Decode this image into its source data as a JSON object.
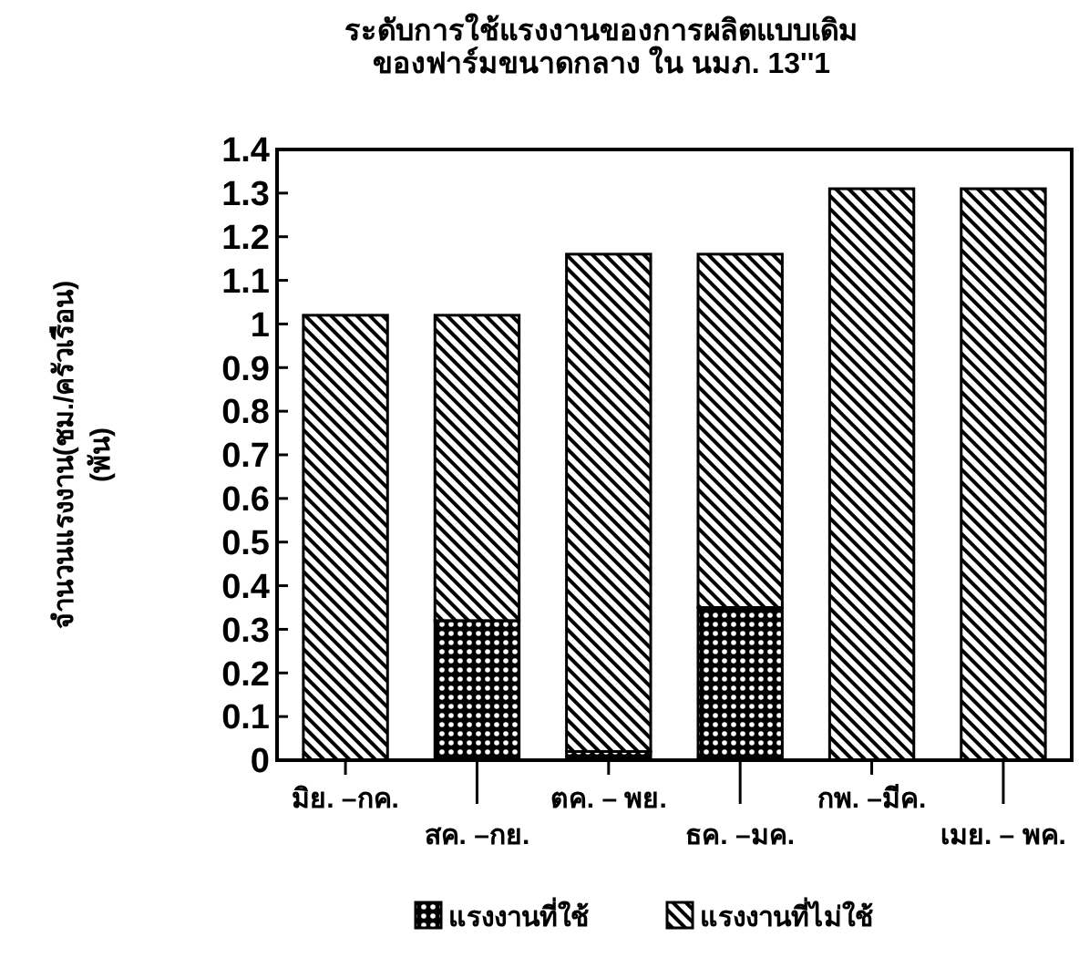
{
  "chart_data": {
    "type": "bar",
    "title": "ระดับการใช้แรงงานของการผลิตแบบเดิม\nของฟาร์มขนาดกลาง ใน นมภ. 13''1",
    "ylabel": "จำนวนแรงงาน(ชม./ครัวเรือน)\n(พัน)",
    "categories": [
      "มิย. –กค.",
      "สค. –กย.",
      "ตค. – พย.",
      "ธค. –มค.",
      "กพ. –มีค.",
      "เมย. – พค."
    ],
    "stacked": true,
    "series": [
      {
        "name": "แรงงานที่ใช้",
        "color": "#000000",
        "values": [
          0,
          0.32,
          0.02,
          0.35,
          0,
          0
        ]
      },
      {
        "name": "แรงงานที่ไม่ใช้",
        "color": "#000000",
        "values": [
          1.02,
          0.7,
          1.14,
          0.81,
          1.31,
          1.31
        ]
      }
    ],
    "ylim": [
      0,
      1.4
    ],
    "yticks": [
      0,
      0.1,
      0.2,
      0.3,
      0.4,
      0.5,
      0.6,
      0.7,
      0.8,
      0.9,
      1,
      1.1,
      1.2,
      1.3,
      1.4
    ],
    "grid": false,
    "legend": "bottom"
  }
}
